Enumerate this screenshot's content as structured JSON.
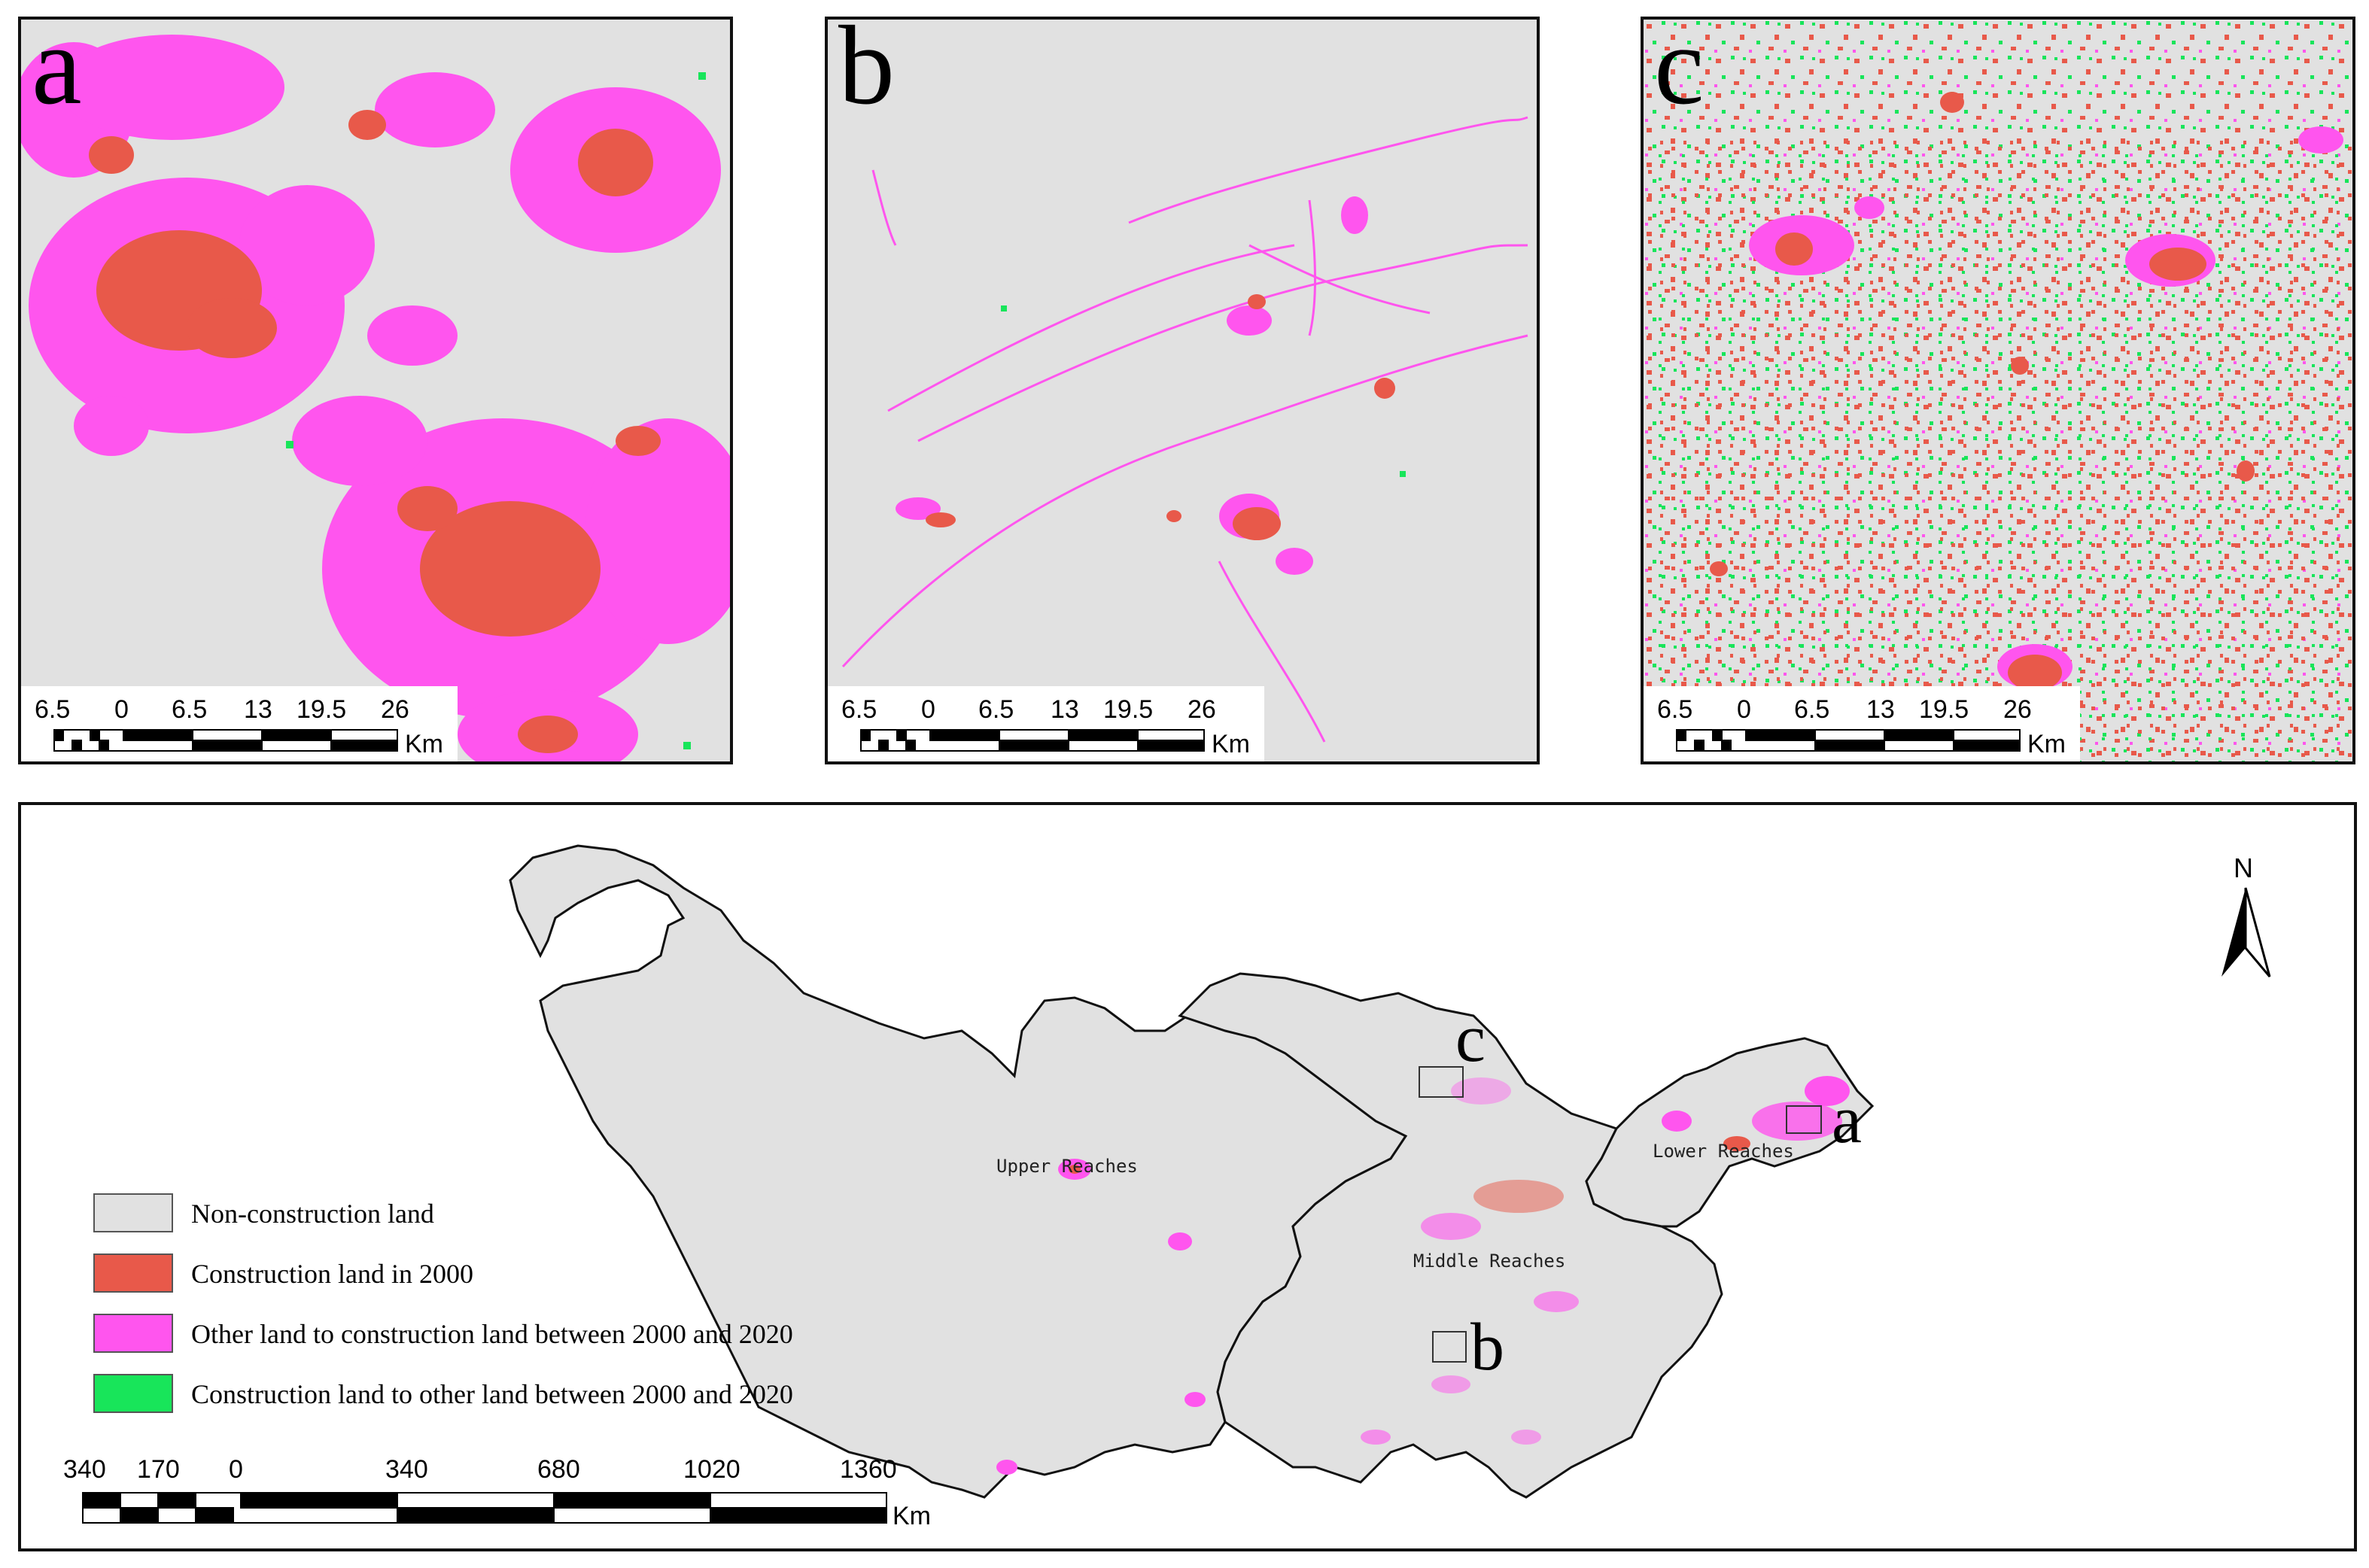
{
  "colors": {
    "non_construction": "#e1e1e1",
    "construction_2000": "#e8594a",
    "other_to_construction": "#ff55ee",
    "construction_to_other": "#18e55a"
  },
  "panels": [
    {
      "letter": "a",
      "scale_ticks": [
        "6.5",
        "0",
        "6.5",
        "13",
        "19.5",
        "26"
      ],
      "scale_unit": "Km"
    },
    {
      "letter": "b",
      "scale_ticks": [
        "6.5",
        "0",
        "6.5",
        "13",
        "19.5",
        "26"
      ],
      "scale_unit": "Km"
    },
    {
      "letter": "c",
      "scale_ticks": [
        "6.5",
        "0",
        "6.5",
        "13",
        "19.5",
        "26"
      ],
      "scale_unit": "Km"
    }
  ],
  "main_map": {
    "north_label": "N",
    "regions": [
      "Upper Reaches",
      "Middle Reaches",
      "Lower Reaches"
    ],
    "markers": [
      "a",
      "b",
      "c"
    ],
    "scale_ticks": [
      "340",
      "170",
      "0",
      "340",
      "680",
      "1020",
      "1360"
    ],
    "scale_unit": "Km"
  },
  "legend": [
    {
      "label": "Non-construction land",
      "color": "#e1e1e1"
    },
    {
      "label": "Construction land in 2000",
      "color": "#e8594a"
    },
    {
      "label": "Other land to construction land between 2000 and 2020",
      "color": "#ff55ee"
    },
    {
      "label": "Construction land to other land between 2000 and 2020",
      "color": "#18e55a"
    }
  ]
}
